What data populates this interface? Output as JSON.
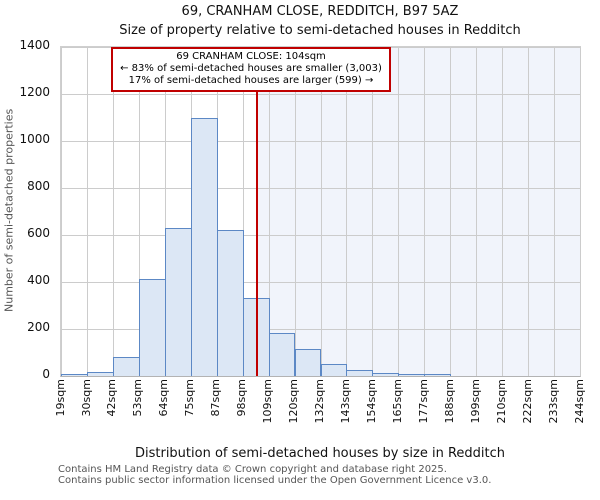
{
  "page": {
    "title_line1": "69, CRANHAM CLOSE, REDDITCH, B97 5AZ",
    "title_line2": "Size of property relative to semi-detached houses in Redditch"
  },
  "annotation": {
    "line1": "69 CRANHAM CLOSE: 104sqm",
    "line2": "← 83% of semi-detached houses are smaller (3,003)",
    "line3": "17% of semi-detached houses are larger (599) →"
  },
  "footer": {
    "line1": "Contains HM Land Registry data © Crown copyright and database right 2025.",
    "line2": "Contains public sector information licensed under the Open Government Licence v3.0."
  },
  "chart_data": {
    "type": "bar",
    "title": "69, CRANHAM CLOSE, REDDITCH, B97 5AZ",
    "subtitle": "Size of property relative to semi-detached houses in Redditch",
    "xlabel": "Distribution of semi-detached houses by size in Redditch",
    "ylabel": "Number of semi-detached properties",
    "ylim": [
      0,
      1400
    ],
    "y_ticks": [
      0,
      200,
      400,
      600,
      800,
      1000,
      1200,
      1400
    ],
    "x_range_sqm": [
      19,
      244
    ],
    "x_tick_labels": [
      "19sqm",
      "30sqm",
      "42sqm",
      "53sqm",
      "64sqm",
      "75sqm",
      "87sqm",
      "98sqm",
      "109sqm",
      "120sqm",
      "132sqm",
      "143sqm",
      "154sqm",
      "165sqm",
      "177sqm",
      "188sqm",
      "199sqm",
      "210sqm",
      "222sqm",
      "233sqm",
      "244sqm"
    ],
    "bin_start_sqm": [
      19,
      30,
      42,
      53,
      64,
      75,
      87,
      98,
      109,
      120,
      132,
      143,
      154,
      165,
      177,
      188,
      199,
      210,
      222,
      233
    ],
    "values": [
      5,
      18,
      82,
      414,
      632,
      1098,
      620,
      332,
      184,
      116,
      50,
      24,
      12,
      6,
      5,
      0,
      0,
      0,
      0,
      0
    ],
    "marker": {
      "value_sqm": 104,
      "pct_smaller": 83,
      "count_smaller": 3003,
      "pct_larger": 17,
      "count_larger": 599
    },
    "grid": true,
    "legend": null,
    "colors": {
      "bar_fill": "#dce7f5",
      "bar_border": "#5c88c5",
      "marker_line": "#c00000",
      "annotation_border": "#c00000",
      "shade_right_of_marker": "#f1f4fb",
      "gridline": "#cccccc"
    }
  }
}
